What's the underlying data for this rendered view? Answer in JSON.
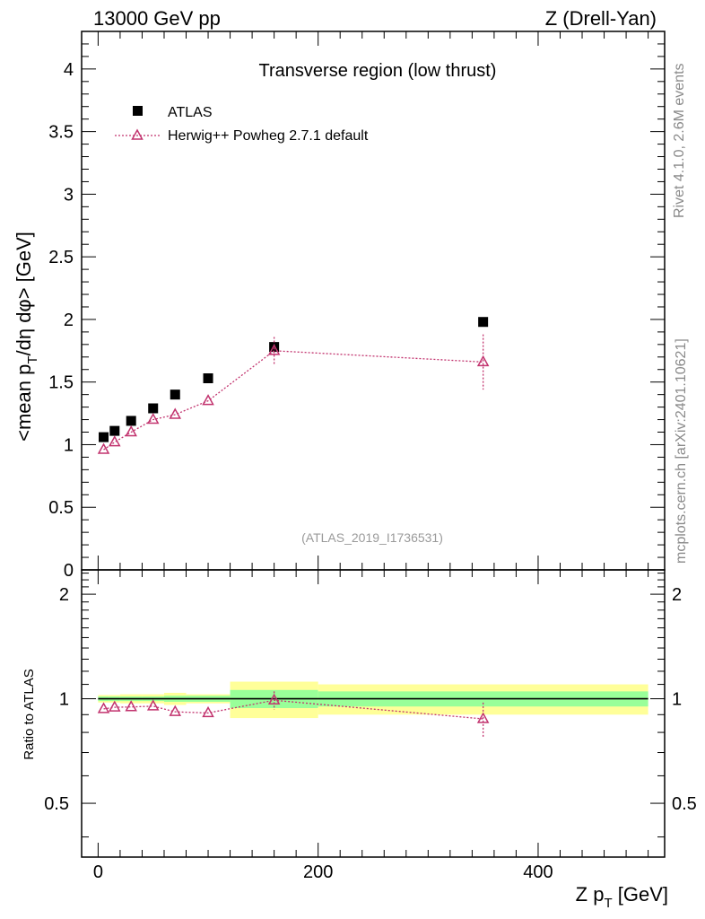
{
  "header": {
    "energy_label": "13000 GeV pp",
    "process_label": "Z (Drell-Yan)"
  },
  "side": {
    "rivet_label": "Rivet 4.1.0,  2.6M events",
    "mcplots_label": "mcplots.cern.ch [arXiv:2401.10621]"
  },
  "chart_data": {
    "type": "scatter",
    "title": "Transverse region (low thrust)",
    "watermark": "(ATLAS_2019_I1736531)",
    "xlabel": "Z p_T [GeV]",
    "xlabel_main": "Z p",
    "xlabel_sub": "T",
    "xlabel_unit": " [GeV]",
    "ylabel": "<mean p_T/dη dφ> [GeV]",
    "ylabel_pre": "<mean p",
    "ylabel_sub": "T",
    "ylabel_post": "/dη dφ> [GeV]",
    "ratio_ylabel": "Ratio to ATLAS",
    "xlim": [
      -15,
      515
    ],
    "ylim": [
      0,
      4.3
    ],
    "ratio_ylim": [
      0.35,
      2.35
    ],
    "x_ticks": [
      0,
      200,
      400
    ],
    "y_ticks": [
      "0",
      "0.5",
      "1",
      "1.5",
      "2",
      "2.5",
      "3",
      "3.5",
      "4"
    ],
    "ratio_ticks": [
      "0.5",
      "1",
      "2"
    ],
    "legend": [
      {
        "name": "ATLAS",
        "marker": "square"
      },
      {
        "name": "Herwig++ Powheg 2.7.1 default",
        "marker": "triangle-open"
      }
    ],
    "series": [
      {
        "name": "ATLAS",
        "color": "#000000",
        "points": [
          {
            "x": 5,
            "y": 1.06
          },
          {
            "x": 15,
            "y": 1.11
          },
          {
            "x": 30,
            "y": 1.19
          },
          {
            "x": 50,
            "y": 1.29
          },
          {
            "x": 70,
            "y": 1.4
          },
          {
            "x": 100,
            "y": 1.53
          },
          {
            "x": 160,
            "y": 1.78
          },
          {
            "x": 350,
            "y": 1.98
          }
        ]
      },
      {
        "name": "Herwig++ Powheg 2.7.1 default",
        "color": "#c2336e",
        "points": [
          {
            "x": 5,
            "y": 0.96,
            "err": 0.01
          },
          {
            "x": 15,
            "y": 1.02,
            "err": 0.01
          },
          {
            "x": 30,
            "y": 1.1,
            "err": 0.01
          },
          {
            "x": 50,
            "y": 1.2,
            "err": 0.01
          },
          {
            "x": 70,
            "y": 1.24,
            "err": 0.01
          },
          {
            "x": 100,
            "y": 1.35,
            "err": 0.02
          },
          {
            "x": 160,
            "y": 1.75,
            "err": 0.11
          },
          {
            "x": 350,
            "y": 1.66,
            "err": 0.22
          }
        ]
      }
    ],
    "ratio_bands": [
      {
        "x0": 0,
        "x1": 10,
        "stat": 0.015,
        "total": 0.025
      },
      {
        "x0": 10,
        "x1": 20,
        "stat": 0.015,
        "total": 0.025
      },
      {
        "x0": 20,
        "x1": 40,
        "stat": 0.015,
        "total": 0.03
      },
      {
        "x0": 40,
        "x1": 60,
        "stat": 0.015,
        "total": 0.03
      },
      {
        "x0": 60,
        "x1": 80,
        "stat": 0.02,
        "total": 0.04
      },
      {
        "x0": 80,
        "x1": 120,
        "stat": 0.02,
        "total": 0.03
      },
      {
        "x0": 120,
        "x1": 200,
        "stat": 0.06,
        "total": 0.12
      },
      {
        "x0": 200,
        "x1": 500,
        "stat": 0.05,
        "total": 0.1
      }
    ],
    "ratio_points": [
      {
        "x": 5,
        "y": 0.935,
        "err": 0.01
      },
      {
        "x": 15,
        "y": 0.945,
        "err": 0.01
      },
      {
        "x": 30,
        "y": 0.947,
        "err": 0.01
      },
      {
        "x": 50,
        "y": 0.952,
        "err": 0.01
      },
      {
        "x": 70,
        "y": 0.917,
        "err": 0.01
      },
      {
        "x": 100,
        "y": 0.91,
        "err": 0.015
      },
      {
        "x": 160,
        "y": 0.99,
        "err": 0.06
      },
      {
        "x": 350,
        "y": 0.875,
        "err": 0.1
      }
    ]
  }
}
